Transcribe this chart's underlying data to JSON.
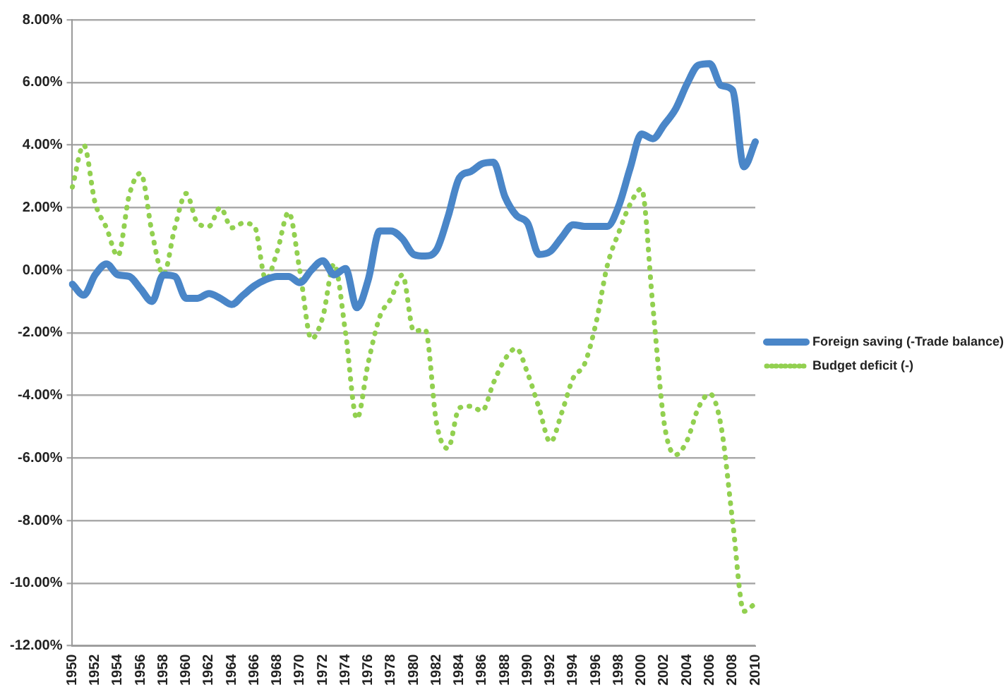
{
  "chart_data": {
    "type": "line",
    "categories": [
      "1950",
      null,
      "1952",
      null,
      "1954",
      null,
      "1956",
      null,
      "1958",
      null,
      "1960",
      null,
      "1962",
      null,
      "1964",
      null,
      "1966",
      null,
      "1968",
      null,
      "1970",
      null,
      "1972",
      null,
      "1974",
      null,
      "1976",
      null,
      "1978",
      null,
      "1980",
      null,
      "1982",
      null,
      "1984",
      null,
      "1986",
      null,
      "1988",
      null,
      "1990",
      null,
      "1992",
      null,
      "1994",
      null,
      "1996",
      null,
      "1998",
      null,
      "2000",
      null,
      "2002",
      null,
      "2004",
      null,
      "2006",
      null,
      "2008",
      null,
      "2010"
    ],
    "series": [
      {
        "name": "Foreign saving (-Trade balance)",
        "color": "#4a86c8",
        "line_style": "solid",
        "values": [
          -0.45,
          -0.8,
          -0.15,
          0.2,
          -0.15,
          -0.2,
          -0.6,
          -1.0,
          -0.15,
          -0.2,
          -0.9,
          -0.9,
          -0.75,
          -0.9,
          -1.1,
          -0.8,
          -0.5,
          -0.3,
          -0.2,
          -0.2,
          -0.4,
          0.0,
          0.3,
          -0.15,
          0.05,
          -1.2,
          -0.3,
          1.25,
          1.25,
          1.0,
          0.5,
          0.45,
          0.65,
          1.7,
          2.95,
          3.15,
          3.4,
          3.45,
          2.35,
          1.75,
          1.5,
          0.5,
          0.6,
          1.05,
          1.45,
          1.4,
          1.4,
          1.4,
          2.05,
          3.25,
          4.35,
          4.2,
          4.65,
          5.15,
          5.95,
          6.55,
          6.6,
          5.9,
          5.75,
          3.3,
          4.1
        ]
      },
      {
        "name": "Budget deficit (-)",
        "color": "#92d050",
        "line_style": "dotted",
        "values": [
          2.65,
          4.0,
          2.15,
          1.35,
          0.45,
          2.4,
          3.1,
          1.2,
          -0.15,
          1.35,
          2.45,
          1.5,
          1.4,
          2.0,
          1.35,
          1.5,
          1.4,
          -0.3,
          0.6,
          1.85,
          -0.05,
          -2.2,
          -1.5,
          0.2,
          -2.0,
          -4.75,
          -2.95,
          -1.5,
          -0.9,
          -0.15,
          -1.95,
          -1.9,
          -4.9,
          -5.7,
          -4.4,
          -4.35,
          -4.5,
          -3.6,
          -2.85,
          -2.5,
          -3.3,
          -4.4,
          -5.5,
          -4.55,
          -3.45,
          -3.0,
          -1.7,
          0.15,
          1.2,
          2.1,
          2.6,
          -1.15,
          -4.9,
          -5.9,
          -5.45,
          -4.4,
          -3.95,
          -5.0,
          -8.0,
          -10.9,
          -10.65
        ]
      }
    ],
    "ylim": [
      -12,
      8
    ],
    "yticks": [
      {
        "value": -12,
        "label": "-12.00%"
      },
      {
        "value": -10,
        "label": "-10.00%"
      },
      {
        "value": -8,
        "label": "-8.00%"
      },
      {
        "value": -6,
        "label": "-6.00%"
      },
      {
        "value": -4,
        "label": "-4.00%"
      },
      {
        "value": -2,
        "label": "-2.00%"
      },
      {
        "value": 0,
        "label": "0.00%"
      },
      {
        "value": 2,
        "label": "2.00%"
      },
      {
        "value": 4,
        "label": "4.00%"
      },
      {
        "value": 6,
        "label": "6.00%"
      },
      {
        "value": 8,
        "label": "8.00%"
      }
    ],
    "grid": "y",
    "legend": "right",
    "marker": "none"
  }
}
